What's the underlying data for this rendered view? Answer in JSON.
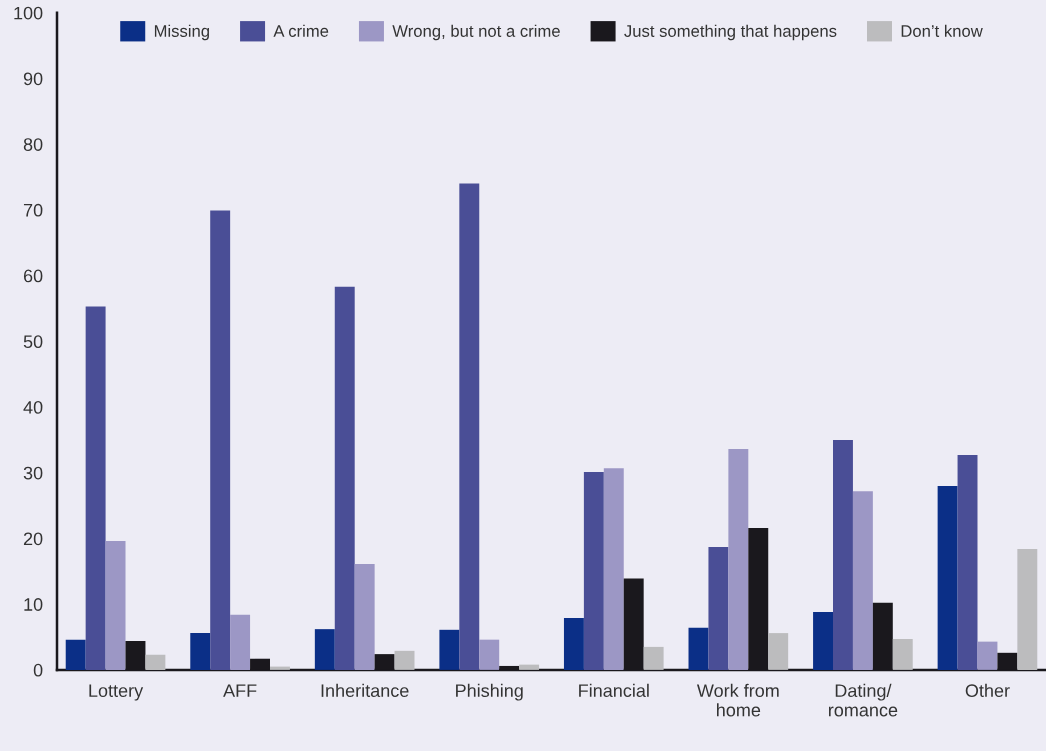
{
  "chart_data": {
    "type": "bar",
    "categories": [
      "Lottery",
      "AFF",
      "Inheritance",
      "Phishing",
      "Financial",
      "Work from\nhome",
      "Dating/\nromance",
      "Other"
    ],
    "series": [
      {
        "name": "Missing",
        "color": "#0b2f87",
        "values": [
          4.6,
          5.6,
          6.2,
          6.1,
          7.9,
          6.4,
          8.8,
          28.0
        ]
      },
      {
        "name": "A crime",
        "color": "#4a4e96",
        "values": [
          55.3,
          69.9,
          58.3,
          74.0,
          30.1,
          18.7,
          35.0,
          32.7
        ]
      },
      {
        "name": "Wrong, but not a crime",
        "color": "#9c97c5",
        "values": [
          19.6,
          8.4,
          16.1,
          4.6,
          30.7,
          33.6,
          27.2,
          4.3
        ]
      },
      {
        "name": "Just something that happens",
        "color": "#1a181d",
        "values": [
          4.4,
          1.7,
          2.4,
          0.6,
          13.9,
          21.6,
          10.2,
          2.6
        ]
      },
      {
        "name": "Don’t know",
        "color": "#bcbcbe",
        "values": [
          2.3,
          0.5,
          2.9,
          0.8,
          3.5,
          5.6,
          4.7,
          18.4
        ]
      }
    ],
    "ylim": [
      0,
      100
    ],
    "yticks": [
      0,
      10,
      20,
      30,
      40,
      50,
      60,
      70,
      80,
      90,
      100
    ],
    "grid": false,
    "legend": "top"
  }
}
